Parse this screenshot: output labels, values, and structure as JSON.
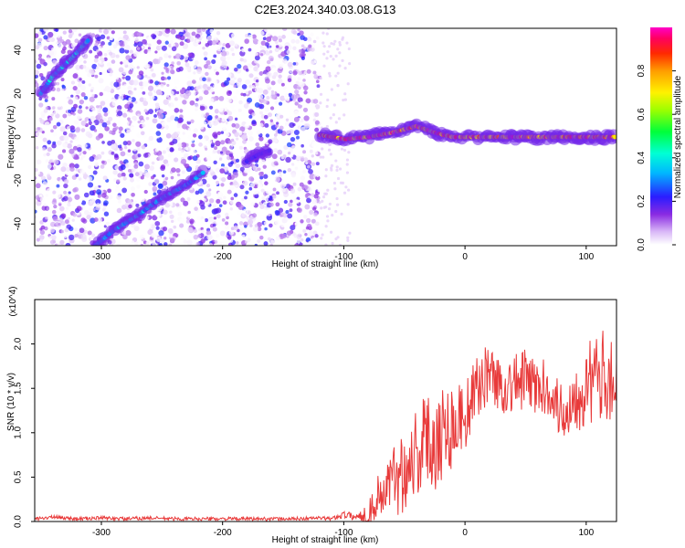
{
  "title": "C2E3.2024.340.03.08.G13",
  "chart_data": [
    {
      "type": "heatmap",
      "xlabel": "Height of straight line (km)",
      "ylabel": "Frequency (Hz)",
      "xlim": [
        -355,
        125
      ],
      "ylim": [
        -50,
        50
      ],
      "xticks": [
        -300,
        -200,
        -100,
        0,
        100
      ],
      "yticks": [
        -40,
        -20,
        0,
        20,
        40
      ],
      "colorbar": {
        "label": "Normalized spectral amplitude",
        "range": [
          0,
          1
        ],
        "ticks": [
          "0.0",
          "0.2",
          "0.4",
          "0.6",
          "0.8"
        ],
        "colormap": "rainbow (white-violet-blue-cyan-green-yellow-red-magenta)"
      },
      "features": [
        {
          "name": "strong trace upper-left",
          "points": [
            [
              -350,
              20
            ],
            [
              -340,
              28
            ],
            [
              -325,
              36
            ],
            [
              -310,
              45
            ]
          ],
          "amplitude": 0.4
        },
        {
          "name": "trace lower-left",
          "points": [
            [
              -305,
              -50
            ],
            [
              -290,
              -43
            ],
            [
              -270,
              -36
            ],
            [
              -250,
              -28
            ],
            [
              -230,
              -22
            ],
            [
              -215,
              -16
            ]
          ],
          "amplitude": 0.35
        },
        {
          "name": "trace middle",
          "points": [
            [
              -180,
              -11
            ],
            [
              -170,
              -8
            ],
            [
              -160,
              -6
            ]
          ],
          "amplitude": 0.25
        },
        {
          "name": "central ridge",
          "points": [
            [
              -120,
              1
            ],
            [
              -100,
              -1
            ],
            [
              -80,
              0
            ],
            [
              -60,
              2
            ],
            [
              -40,
              5
            ],
            [
              -25,
              2
            ],
            [
              -10,
              0
            ],
            [
              0,
              0
            ],
            [
              50,
              0
            ],
            [
              125,
              0
            ]
          ],
          "amplitude": 0.95
        },
        {
          "name": "noise region",
          "points": [
            [
              -355,
              -50
            ],
            [
              -120,
              50
            ]
          ],
          "amplitude": 0.1
        }
      ]
    },
    {
      "type": "line",
      "xlabel": "Height of straight line (km)",
      "ylabel": "SNR (10 * v/v)",
      "multiplier": "(x10^4)",
      "xlim": [
        -355,
        125
      ],
      "ylim": [
        0,
        2.5
      ],
      "xticks": [
        -300,
        -200,
        -100,
        0,
        100
      ],
      "yticks": [
        "0.0",
        "0.5",
        "1.0",
        "1.5",
        "2.0"
      ],
      "color": "#e83a3a",
      "series": [
        {
          "x": [
            -355,
            -340,
            -320,
            -300,
            -280,
            -260,
            -240,
            -220,
            -200,
            -180,
            -160,
            -140,
            -120,
            -110,
            -100,
            -90,
            -80,
            -70,
            -60,
            -50,
            -40,
            -30,
            -20,
            -10,
            0,
            10,
            20,
            30,
            40,
            50,
            60,
            70,
            80,
            90,
            100,
            110,
            120,
            125
          ],
          "values": [
            0.03,
            0.05,
            0.03,
            0.04,
            0.03,
            0.04,
            0.03,
            0.03,
            0.03,
            0.03,
            0.03,
            0.03,
            0.04,
            0.03,
            0.08,
            0.05,
            0.1,
            0.3,
            0.45,
            0.6,
            0.8,
            0.9,
            1.0,
            1.1,
            1.2,
            1.5,
            1.7,
            1.5,
            1.55,
            1.6,
            1.5,
            1.5,
            1.2,
            1.4,
            1.55,
            1.6,
            1.7,
            1.4
          ],
          "noise": [
            0.02,
            0.02,
            0.02,
            0.02,
            0.02,
            0.02,
            0.02,
            0.02,
            0.02,
            0.02,
            0.02,
            0.02,
            0.02,
            0.02,
            0.04,
            0.04,
            0.15,
            0.3,
            0.4,
            0.5,
            0.55,
            0.6,
            0.6,
            0.5,
            0.4,
            0.35,
            0.35,
            0.3,
            0.35,
            0.35,
            0.35,
            0.3,
            0.35,
            0.4,
            0.5,
            0.5,
            0.55,
            0.6
          ]
        }
      ]
    }
  ]
}
